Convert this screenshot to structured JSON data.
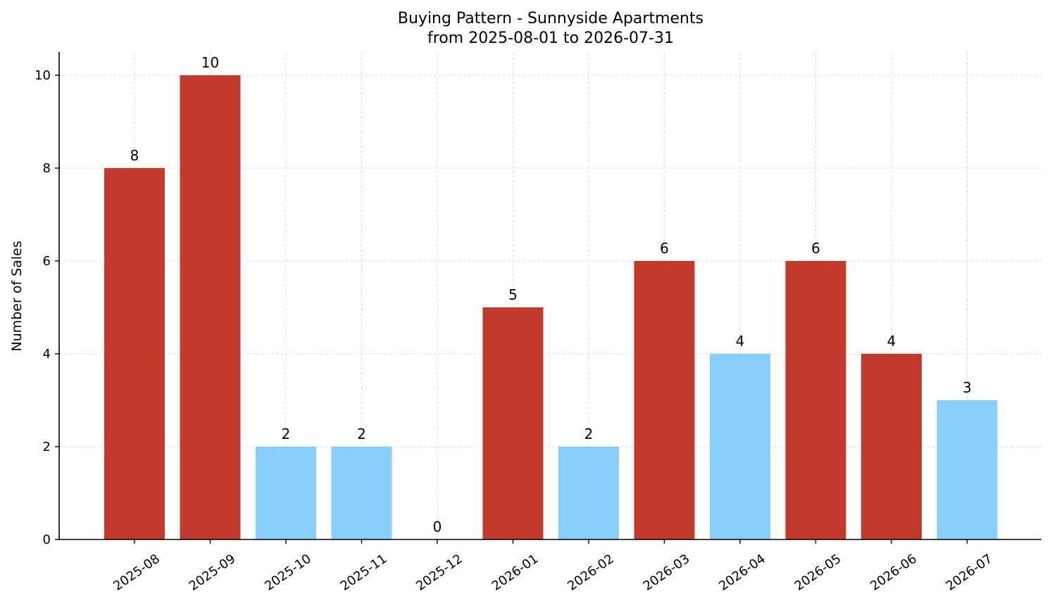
{
  "chart_data": {
    "type": "bar",
    "title": "Buying Pattern - Sunnyside Apartments",
    "subtitle": "from 2025-08-01 to 2026-07-31",
    "xlabel": "",
    "ylabel": "Number of Sales",
    "categories": [
      "2025-08",
      "2025-09",
      "2025-10",
      "2025-11",
      "2025-12",
      "2026-01",
      "2026-02",
      "2026-03",
      "2026-04",
      "2026-05",
      "2026-06",
      "2026-07"
    ],
    "values": [
      8,
      10,
      2,
      2,
      0,
      5,
      2,
      6,
      4,
      6,
      4,
      3
    ],
    "bar_colors": [
      "#c0392b",
      "#c0392b",
      "#87cefa",
      "#87cefa",
      "#87cefa",
      "#c0392b",
      "#87cefa",
      "#c0392b",
      "#87cefa",
      "#c0392b",
      "#c0392b",
      "#87cefa"
    ],
    "ylim": [
      0,
      10.5
    ],
    "yticks": [
      0,
      2,
      4,
      6,
      8,
      10
    ],
    "grid": true,
    "x_tick_rotation": "rotated",
    "data_labels": true
  }
}
